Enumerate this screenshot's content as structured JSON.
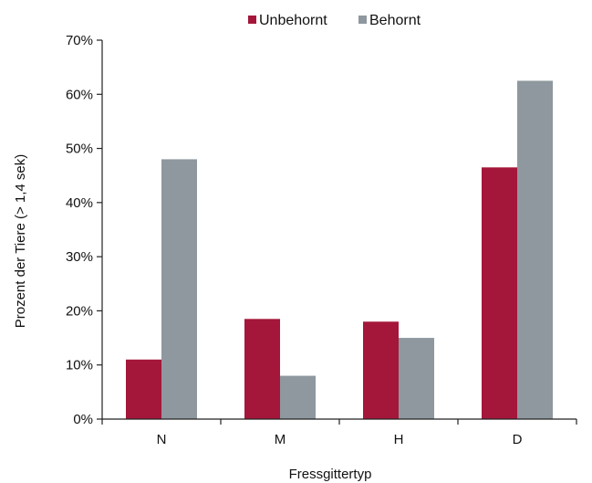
{
  "chart_data": {
    "type": "bar",
    "title": "",
    "xlabel": "Fressgittertyp",
    "ylabel": "Prozent der Tiere (> 1,4 sek)",
    "categories": [
      "N",
      "M",
      "H",
      "D"
    ],
    "series": [
      {
        "name": "Unbehornt",
        "color": "#a4173a",
        "values": [
          11,
          18.5,
          18,
          46.5
        ]
      },
      {
        "name": "Behornt",
        "color": "#8e989e",
        "values": [
          48,
          8,
          15,
          62.5
        ]
      }
    ],
    "ylim": [
      0,
      70
    ],
    "yticks": [
      0,
      10,
      20,
      30,
      40,
      50,
      60,
      70
    ],
    "ytick_labels": [
      "0%",
      "10%",
      "20%",
      "30%",
      "40%",
      "50%",
      "60%",
      "70%"
    ],
    "grid": false,
    "legend": "top-center"
  }
}
